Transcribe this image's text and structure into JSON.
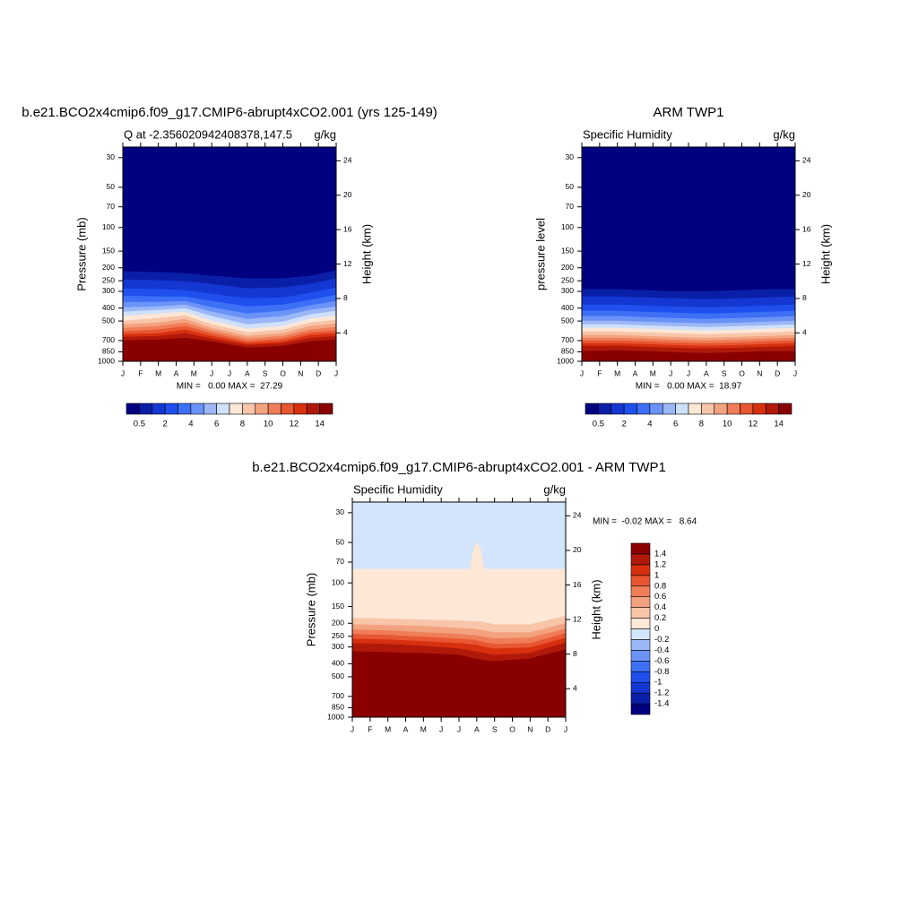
{
  "chart_data": [
    {
      "type": "contour",
      "title": "b.e21.BCO2x4cmip6.f09_g17.CMIP6-abrupt4xCO2.001 (yrs 125-149)",
      "left_string": "Q at -2.356020942408378,147.5",
      "right_string": "g/kg",
      "ylabel": "Pressure (mb)",
      "y2label": "Height (km)",
      "stats": "MIN =   0.00 MAX =  27.29",
      "categories": [
        "J",
        "F",
        "M",
        "A",
        "M",
        "J",
        "J",
        "A",
        "S",
        "O",
        "N",
        "D",
        "J"
      ],
      "xlim": [
        0,
        12
      ],
      "ylim": [
        1000,
        25
      ],
      "log_y": true,
      "yticks": [
        30,
        50,
        70,
        100,
        150,
        200,
        250,
        300,
        400,
        500,
        700,
        850,
        1000
      ],
      "y2lim": [
        0.7,
        25.6
      ],
      "y2ticks": [
        4,
        8,
        12,
        16,
        20,
        24
      ],
      "levels": [
        0.5,
        1,
        2,
        3,
        4,
        5,
        6,
        7,
        8,
        9,
        10,
        11,
        12,
        13,
        14
      ],
      "colors": [
        "#000080",
        "#0a1fa8",
        "#1437d1",
        "#1f50ee",
        "#3d70f5",
        "#6b93f7",
        "#9bb7f8",
        "#cfe0fa",
        "#fde7d6",
        "#f8c5a9",
        "#f3a27f",
        "#ef7e58",
        "#e85632",
        "#d7300e",
        "#b0190a",
        "#8a0000"
      ],
      "colorbar": "horizontal",
      "colorbar_ticks": [
        0.5,
        2,
        4,
        6,
        8,
        10,
        12,
        14
      ],
      "contours": {
        "x": [
          0,
          2,
          3.5,
          5,
          7,
          9,
          10.5,
          12
        ],
        "lines": [
          {
            "level": 0.5,
            "p": [
              213,
              216,
              220,
              230,
              241,
              241,
              230,
              210
            ]
          },
          {
            "level": 1,
            "p": [
              245,
              249,
              253,
              265,
              286,
              281,
              265,
              241
            ]
          },
          {
            "level": 2,
            "p": [
              286,
              290,
              295,
              314,
              339,
              334,
              309,
              281
            ]
          },
          {
            "level": 3,
            "p": [
              324,
              329,
              329,
              355,
              390,
              378,
              349,
              319
            ]
          },
          {
            "level": 4,
            "p": [
              361,
              361,
              355,
              396,
              441,
              421,
              384,
              355
            ]
          },
          {
            "level": 5,
            "p": [
              396,
              390,
              378,
              428,
              484,
              461,
              414,
              390
            ]
          },
          {
            "level": 6,
            "p": [
              428,
              414,
              402,
              461,
              531,
              507,
              448,
              421
            ]
          },
          {
            "level": 7,
            "p": [
              461,
              441,
              428,
              499,
              573,
              547,
              484,
              455
            ]
          },
          {
            "level": 8,
            "p": [
              499,
              476,
              455,
              531,
              610,
              582,
              515,
              492
            ]
          },
          {
            "level": 9,
            "p": [
              531,
              515,
              484,
              565,
              649,
              619,
              547,
              523
            ]
          },
          {
            "level": 10,
            "p": [
              565,
              547,
              515,
              592,
              679,
              649,
              582,
              556
            ]
          },
          {
            "level": 11,
            "p": [
              600,
              582,
              547,
              619,
              711,
              679,
              610,
              592
            ]
          },
          {
            "level": 12,
            "p": [
              630,
              619,
              582,
              649,
              735,
              711,
              638,
              619
            ]
          },
          {
            "level": 13,
            "p": [
              659,
              649,
              619,
              679,
              757,
              735,
              670,
              649
            ]
          },
          {
            "level": 14,
            "p": [
              701,
              690,
              670,
              711,
              793,
              769,
              711,
              690
            ]
          }
        ]
      }
    },
    {
      "type": "contour",
      "title": "ARM TWP1",
      "left_string": "Specific Humidity",
      "right_string": "g/kg",
      "ylabel": "pressure level",
      "y2label": "Height (km)",
      "stats": "MIN =   0.00 MAX =  18.97",
      "categories": [
        "J",
        "F",
        "M",
        "A",
        "M",
        "J",
        "J",
        "A",
        "S",
        "O",
        "N",
        "D",
        "J"
      ],
      "xlim": [
        0,
        12
      ],
      "ylim": [
        1000,
        25
      ],
      "log_y": true,
      "yticks": [
        30,
        50,
        70,
        100,
        150,
        200,
        250,
        300,
        400,
        500,
        700,
        850,
        1000
      ],
      "y2lim": [
        0.7,
        25.6
      ],
      "y2ticks": [
        4,
        8,
        12,
        16,
        20,
        24
      ],
      "levels": [
        0.5,
        1,
        2,
        3,
        4,
        5,
        6,
        7,
        8,
        9,
        10,
        11,
        12,
        13,
        14
      ],
      "colors": [
        "#000080",
        "#0a1fa8",
        "#1437d1",
        "#1f50ee",
        "#3d70f5",
        "#6b93f7",
        "#9bb7f8",
        "#cfe0fa",
        "#fde7d6",
        "#f8c5a9",
        "#f3a27f",
        "#ef7e58",
        "#e85632",
        "#d7300e",
        "#b0190a",
        "#8a0000"
      ],
      "colorbar": "horizontal",
      "colorbar_ticks": [
        0.5,
        2,
        4,
        6,
        8,
        10,
        12,
        14
      ],
      "contours": {
        "x": [
          0,
          2,
          3.5,
          5,
          7,
          9,
          10.5,
          12
        ],
        "lines": [
          {
            "level": 0.5,
            "p": [
              290,
              290,
              295,
              300,
              300,
              295,
              290,
              290
            ]
          },
          {
            "level": 1,
            "p": [
              329,
              329,
              334,
              339,
              344,
              339,
              334,
              329
            ]
          },
          {
            "level": 2,
            "p": [
              378,
              378,
              384,
              390,
              396,
              390,
              384,
              378
            ]
          },
          {
            "level": 3,
            "p": [
              421,
              421,
              428,
              434,
              441,
              434,
              428,
              421
            ]
          },
          {
            "level": 4,
            "p": [
              461,
              461,
              469,
              476,
              484,
              476,
              469,
              461
            ]
          },
          {
            "level": 5,
            "p": [
              499,
              499,
              507,
              515,
              523,
              515,
              507,
              499
            ]
          },
          {
            "level": 6,
            "p": [
              531,
              531,
              540,
              547,
              556,
              547,
              540,
              531
            ]
          },
          {
            "level": 7,
            "p": [
              565,
              565,
              573,
              582,
              592,
              582,
              573,
              565
            ]
          },
          {
            "level": 8,
            "p": [
              600,
              600,
              610,
              619,
              630,
              619,
              610,
              600
            ]
          },
          {
            "level": 9,
            "p": [
              638,
              638,
              649,
              659,
              670,
              659,
              649,
              638
            ]
          },
          {
            "level": 10,
            "p": [
              670,
              670,
              679,
              690,
              701,
              690,
              679,
              670
            ]
          },
          {
            "level": 11,
            "p": [
              701,
              701,
              711,
              723,
              735,
              723,
              711,
              701
            ]
          },
          {
            "level": 12,
            "p": [
              735,
              735,
              745,
              757,
              769,
              757,
              745,
              735
            ]
          },
          {
            "level": 13,
            "p": [
              769,
              769,
              781,
              793,
              805,
              793,
              781,
              769
            ]
          },
          {
            "level": 14,
            "p": [
              844,
              830,
              844,
              857,
              871,
              857,
              844,
              844
            ]
          }
        ]
      }
    },
    {
      "type": "contour",
      "title": "b.e21.BCO2x4cmip6.f09_g17.CMIP6-abrupt4xCO2.001 - ARM TWP1",
      "left_string": "Specific Humidity",
      "right_string": "g/kg",
      "ylabel": "Pressure (mb)",
      "y2label": "Height (km)",
      "stats": "MIN =  -0.02 MAX =   8.64",
      "categories": [
        "J",
        "F",
        "M",
        "A",
        "M",
        "J",
        "J",
        "A",
        "S",
        "O",
        "N",
        "D",
        "J"
      ],
      "xlim": [
        0,
        12
      ],
      "ylim": [
        1000,
        25
      ],
      "log_y": true,
      "yticks": [
        30,
        50,
        70,
        100,
        150,
        200,
        250,
        300,
        400,
        500,
        700,
        850,
        1000
      ],
      "y2lim": [
        0.7,
        25.6
      ],
      "y2ticks": [
        4,
        8,
        12,
        16,
        20,
        24
      ],
      "levels": [
        -1.4,
        -1.2,
        -1,
        -0.8,
        -0.6,
        -0.4,
        -0.2,
        0,
        0.2,
        0.4,
        0.6,
        0.8,
        1,
        1.2,
        1.4
      ],
      "colors": [
        "#000080",
        "#0a1fa8",
        "#1437d1",
        "#1f50ee",
        "#3d70f5",
        "#6b93f7",
        "#9bb7f8",
        "#d3e5fb",
        "#fde7d6",
        "#f8c5a9",
        "#f3a27f",
        "#ef7e58",
        "#e85632",
        "#d7300e",
        "#b0190a",
        "#8a0000"
      ],
      "colorbar": "vertical",
      "colorbar_ticks": [
        -1.4,
        -1.2,
        -1,
        -0.8,
        -0.6,
        -0.4,
        -0.2,
        0,
        0.2,
        0.4,
        0.6,
        0.8,
        1,
        1.2,
        1.4
      ],
      "contours": {
        "x": [
          0,
          2,
          4,
          6,
          6.6,
          6.85,
          7,
          7.2,
          7.4,
          8,
          10,
          12
        ],
        "lines": [
          {
            "level": 0,
            "p": [
              79,
              79,
              79,
              79,
              79,
              55,
              50,
              55,
              79,
              79,
              79,
              79
            ]
          },
          {
            "level": 0.2,
            "p": [
              183,
              185,
              188,
              191,
              194,
              194,
              194,
              194,
              197,
              204,
              204,
              177
            ]
          },
          {
            "level": 0.4,
            "p": [
              204,
              207,
              210,
              217,
              220,
              220,
              223,
              223,
              227,
              234,
              234,
              200
            ]
          },
          {
            "level": 0.6,
            "p": [
              223,
              227,
              234,
              241,
              245,
              245,
              249,
              249,
              253,
              260,
              256,
              220
            ]
          },
          {
            "level": 0.8,
            "p": [
              241,
              245,
              253,
              261,
              265,
              265,
              269,
              273,
              277,
              286,
              282,
              237
            ]
          },
          {
            "level": 1,
            "p": [
              261,
              265,
              273,
              282,
              286,
              290,
              290,
              295,
              300,
              309,
              304,
              257
            ]
          },
          {
            "level": 1.2,
            "p": [
              282,
              286,
              295,
              309,
              319,
              324,
              324,
              329,
              334,
              345,
              334,
              277
            ]
          },
          {
            "level": 1.4,
            "p": [
              324,
              329,
              334,
              344,
              360,
              366,
              366,
              372,
              378,
              384,
              366,
              314
            ]
          }
        ]
      }
    }
  ]
}
